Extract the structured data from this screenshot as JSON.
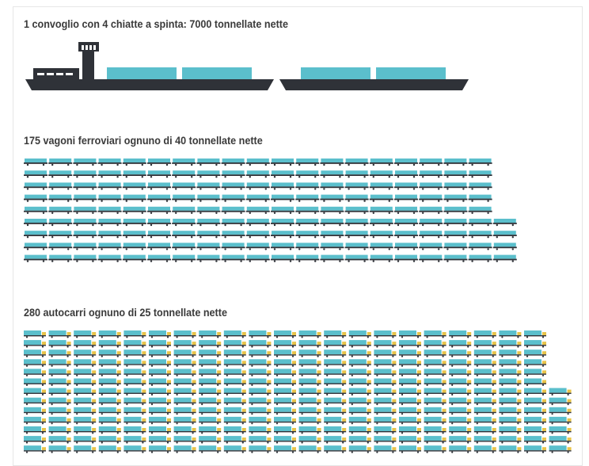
{
  "sections": {
    "barges": {
      "title": "1 convoglio con 4 chiatte a spinta: 7000 tonnellate nette",
      "convoy_count": 1,
      "barge_count": 4,
      "total_net_tonnes": 7000
    },
    "rail": {
      "title": "175 vagoni ferroviari ognuno di 40 tonnellate nette",
      "wagon_count": 175,
      "tonnes_each": 40
    },
    "trucks": {
      "title": "280 autocarri ognuno di 25 tonnellate nette",
      "truck_count": 280,
      "tonnes_each": 25
    }
  },
  "colors": {
    "hull": "#2f3238",
    "cargo": "#5bbfcc",
    "text": "#3a3a3a",
    "cab": "#e8c44a"
  }
}
